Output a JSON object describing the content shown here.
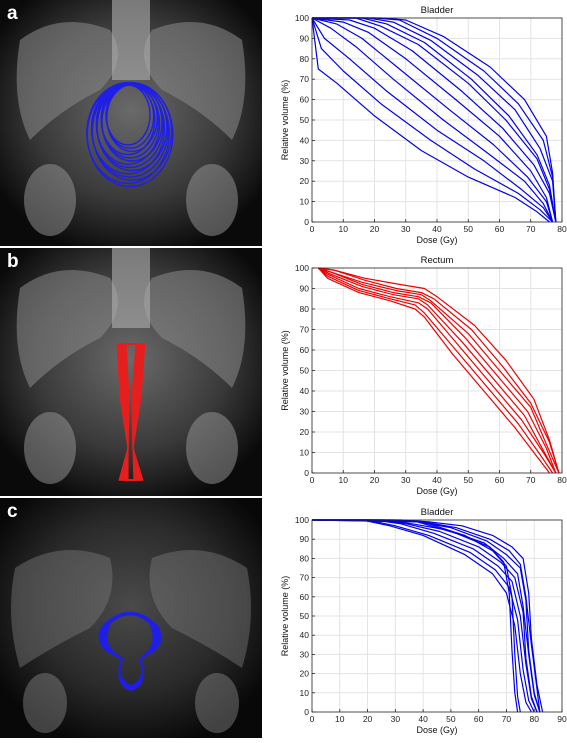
{
  "panels": [
    {
      "label": "a",
      "contour_color": "#1f1fe6"
    },
    {
      "label": "b",
      "contour_color": "#e61f1f"
    },
    {
      "label": "c",
      "contour_color": "#1f1fe6"
    }
  ],
  "chart_data": [
    {
      "type": "line",
      "title": "Bladder",
      "xlabel": "Dose (Gy)",
      "ylabel": "Relative volume (%)",
      "xlim": [
        0,
        80
      ],
      "ylim": [
        0,
        100
      ],
      "xticks": [
        0,
        10,
        20,
        30,
        40,
        50,
        60,
        70,
        80
      ],
      "yticks": [
        0,
        10,
        20,
        30,
        40,
        50,
        60,
        70,
        80,
        90,
        100
      ],
      "grid": true,
      "color": "#0000ee",
      "series": [
        {
          "x": [
            0,
            2,
            8,
            20,
            35,
            50,
            65,
            72,
            76
          ],
          "y": [
            100,
            75,
            68,
            52,
            35,
            22,
            12,
            5,
            0
          ]
        },
        {
          "x": [
            0,
            3,
            10,
            22,
            38,
            52,
            66,
            73,
            77
          ],
          "y": [
            100,
            85,
            74,
            58,
            40,
            26,
            14,
            6,
            0
          ]
        },
        {
          "x": [
            0,
            4,
            12,
            24,
            40,
            55,
            67,
            74,
            77
          ],
          "y": [
            100,
            90,
            80,
            64,
            45,
            30,
            16,
            7,
            0
          ]
        },
        {
          "x": [
            0,
            6,
            14,
            26,
            42,
            56,
            68,
            74,
            77
          ],
          "y": [
            100,
            95,
            86,
            70,
            50,
            34,
            20,
            9,
            0
          ]
        },
        {
          "x": [
            0,
            8,
            16,
            28,
            44,
            58,
            69,
            75,
            77
          ],
          "y": [
            100,
            97,
            90,
            75,
            55,
            38,
            22,
            10,
            0
          ]
        },
        {
          "x": [
            0,
            10,
            18,
            30,
            46,
            60,
            70,
            75,
            77
          ],
          "y": [
            100,
            98,
            93,
            80,
            60,
            42,
            25,
            12,
            0
          ]
        },
        {
          "x": [
            0,
            12,
            20,
            32,
            48,
            61,
            71,
            76,
            78
          ],
          "y": [
            100,
            99,
            95,
            84,
            64,
            46,
            28,
            14,
            0
          ]
        },
        {
          "x": [
            0,
            14,
            22,
            34,
            50,
            62,
            72,
            76,
            78
          ],
          "y": [
            100,
            100,
            96,
            87,
            68,
            50,
            31,
            16,
            0
          ]
        },
        {
          "x": [
            0,
            16,
            24,
            36,
            51,
            63,
            72,
            76,
            78
          ],
          "y": [
            100,
            100,
            97,
            88,
            70,
            52,
            33,
            18,
            0
          ]
        },
        {
          "x": [
            0,
            18,
            26,
            38,
            53,
            65,
            73,
            77,
            78
          ],
          "y": [
            100,
            100,
            98,
            89,
            72,
            55,
            36,
            20,
            0
          ]
        },
        {
          "x": [
            0,
            20,
            28,
            40,
            55,
            66,
            74,
            77,
            78
          ],
          "y": [
            100,
            100,
            99,
            90,
            74,
            58,
            40,
            22,
            0
          ]
        },
        {
          "x": [
            0,
            22,
            30,
            42,
            57,
            68,
            75,
            77,
            78
          ],
          "y": [
            100,
            100,
            99,
            91,
            76,
            60,
            42,
            24,
            0
          ]
        }
      ]
    },
    {
      "type": "line",
      "title": "Rectum",
      "xlabel": "Dose (Gy)",
      "ylabel": "Relative volume (%)",
      "xlim": [
        0,
        80
      ],
      "ylim": [
        0,
        100
      ],
      "xticks": [
        0,
        10,
        20,
        30,
        40,
        50,
        60,
        70,
        80
      ],
      "yticks": [
        0,
        10,
        20,
        30,
        40,
        50,
        60,
        70,
        80,
        90,
        100
      ],
      "grid": true,
      "color": "#ee0000",
      "series": [
        {
          "x": [
            2,
            5,
            15,
            25,
            33,
            36,
            45,
            55,
            65,
            72,
            76
          ],
          "y": [
            100,
            95,
            88,
            84,
            80,
            76,
            58,
            40,
            22,
            8,
            0
          ]
        },
        {
          "x": [
            2,
            5,
            15,
            25,
            33,
            36,
            46,
            56,
            66,
            73,
            77
          ],
          "y": [
            100,
            96,
            89,
            85,
            82,
            78,
            60,
            42,
            24,
            9,
            0
          ]
        },
        {
          "x": [
            2,
            5,
            15,
            25,
            34,
            37,
            47,
            57,
            67,
            74,
            78
          ],
          "y": [
            100,
            97,
            90,
            86,
            83,
            80,
            62,
            44,
            26,
            10,
            0
          ]
        },
        {
          "x": [
            2,
            6,
            16,
            26,
            34,
            37,
            48,
            58,
            68,
            74,
            78
          ],
          "y": [
            100,
            97,
            91,
            87,
            85,
            82,
            64,
            46,
            28,
            11,
            0
          ]
        },
        {
          "x": [
            2,
            6,
            16,
            26,
            34,
            38,
            49,
            59,
            69,
            75,
            78
          ],
          "y": [
            100,
            98,
            92,
            88,
            86,
            83,
            66,
            48,
            30,
            12,
            0
          ]
        },
        {
          "x": [
            2,
            6,
            16,
            27,
            35,
            38,
            50,
            60,
            70,
            75,
            79
          ],
          "y": [
            100,
            98,
            93,
            89,
            87,
            84,
            68,
            50,
            32,
            14,
            0
          ]
        },
        {
          "x": [
            2,
            7,
            17,
            27,
            35,
            39,
            51,
            61,
            70,
            76,
            79
          ],
          "y": [
            100,
            99,
            94,
            90,
            88,
            85,
            70,
            52,
            34,
            15,
            0
          ]
        },
        {
          "x": [
            2,
            7,
            17,
            28,
            36,
            40,
            52,
            62,
            71,
            76,
            79
          ],
          "y": [
            100,
            99,
            95,
            92,
            90,
            86,
            72,
            55,
            36,
            16,
            0
          ]
        }
      ]
    },
    {
      "type": "line",
      "title": "Bladder",
      "xlabel": "Dose (Gy)",
      "ylabel": "Relative volume (%)",
      "xlim": [
        0,
        90
      ],
      "ylim": [
        0,
        100
      ],
      "xticks": [
        0,
        10,
        20,
        30,
        40,
        50,
        60,
        70,
        80,
        90
      ],
      "yticks": [
        0,
        10,
        20,
        30,
        40,
        50,
        60,
        70,
        80,
        90,
        100
      ],
      "grid": true,
      "color": "#0000ee",
      "series": [
        {
          "x": [
            0,
            18,
            28,
            40,
            55,
            65,
            70,
            73,
            75,
            77,
            79
          ],
          "y": [
            100,
            100,
            97,
            92,
            82,
            72,
            62,
            45,
            20,
            5,
            0
          ]
        },
        {
          "x": [
            0,
            20,
            30,
            42,
            57,
            66,
            71,
            74,
            76,
            78,
            80
          ],
          "y": [
            100,
            100,
            97,
            92,
            83,
            74,
            65,
            48,
            22,
            6,
            0
          ]
        },
        {
          "x": [
            0,
            22,
            32,
            44,
            58,
            67,
            72,
            75,
            77,
            79,
            81
          ],
          "y": [
            100,
            100,
            98,
            93,
            85,
            76,
            68,
            50,
            25,
            7,
            0
          ]
        },
        {
          "x": [
            0,
            24,
            34,
            46,
            60,
            68,
            73,
            76,
            77,
            79,
            81
          ],
          "y": [
            100,
            100,
            98,
            94,
            86,
            78,
            70,
            52,
            28,
            8,
            0
          ]
        },
        {
          "x": [
            0,
            26,
            36,
            48,
            62,
            69,
            74,
            76,
            78,
            80,
            82
          ],
          "y": [
            100,
            100,
            98,
            95,
            88,
            80,
            72,
            55,
            30,
            9,
            0
          ]
        },
        {
          "x": [
            0,
            28,
            38,
            50,
            63,
            70,
            75,
            77,
            78,
            80,
            82
          ],
          "y": [
            100,
            100,
            99,
            96,
            89,
            82,
            75,
            58,
            32,
            10,
            0
          ]
        },
        {
          "x": [
            0,
            30,
            40,
            52,
            64,
            71,
            75,
            77,
            79,
            81,
            82
          ],
          "y": [
            100,
            100,
            99,
            96,
            90,
            84,
            77,
            60,
            35,
            12,
            0
          ]
        },
        {
          "x": [
            0,
            32,
            42,
            54,
            65,
            72,
            76,
            78,
            79,
            81,
            83
          ],
          "y": [
            100,
            100,
            99,
            97,
            92,
            86,
            80,
            62,
            38,
            14,
            0
          ]
        },
        {
          "x": [
            0,
            40,
            55,
            65,
            70,
            72,
            73,
            74,
            75
          ],
          "y": [
            100,
            99,
            92,
            84,
            76,
            60,
            30,
            8,
            0
          ]
        },
        {
          "x": [
            0,
            38,
            52,
            64,
            69,
            71,
            72,
            73,
            74
          ],
          "y": [
            100,
            99,
            93,
            86,
            78,
            62,
            32,
            10,
            0
          ]
        }
      ]
    }
  ]
}
